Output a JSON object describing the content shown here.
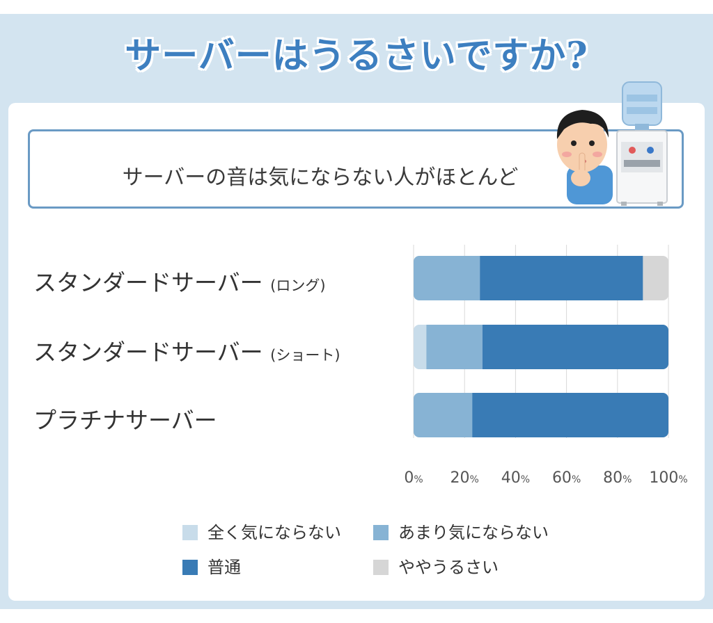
{
  "title": "サーバーはうるさいですか?",
  "callout": "サーバーの音は気にならない人がほとんど",
  "labels": {
    "row1_main": "スタンダードサーバー",
    "row1_paren": "(ロング)",
    "row2_main": "スタンダードサーバー",
    "row2_paren": "(ショート)",
    "row3_main": "プラチナサーバー"
  },
  "chart_data": {
    "type": "bar",
    "orientation": "horizontal",
    "stacked": true,
    "categories": [
      "スタンダードサーバー (ロング)",
      "スタンダードサーバー (ショート)",
      "プラチナサーバー"
    ],
    "series": [
      {
        "name": "全く気にならない",
        "color": "#c8dcea",
        "values": [
          0,
          5,
          0
        ]
      },
      {
        "name": "あまり気にならない",
        "color": "#87b3d4",
        "values": [
          26,
          22,
          23
        ]
      },
      {
        "name": "普通",
        "color": "#397bb5",
        "values": [
          64,
          73,
          77
        ]
      },
      {
        "name": "ややうるさい",
        "color": "#d6d6d6",
        "values": [
          10,
          0,
          0
        ]
      }
    ],
    "xlim": [
      0,
      100
    ],
    "ticks": [
      "0",
      "20",
      "40",
      "60",
      "80",
      "100"
    ],
    "tick_unit": "%",
    "grid": true,
    "legend_position": "bottom"
  },
  "colors": {
    "title": "#3d7fc0",
    "frame": "#d3e4f0",
    "callout_border": "#6a9ac4"
  }
}
